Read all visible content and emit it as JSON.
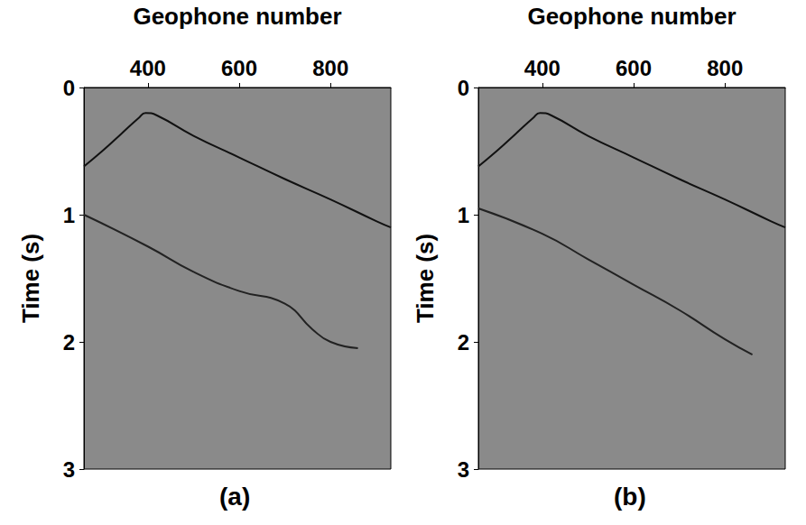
{
  "chart_data": [
    {
      "type": "line",
      "title": "(a)",
      "x_label": "Geophone number",
      "y_label": "Time (s)",
      "xlim": [
        260,
        932
      ],
      "xticks": [
        400,
        600,
        800
      ],
      "ylim": [
        0,
        3
      ],
      "yticks": [
        0,
        1,
        2,
        3
      ],
      "grid": false,
      "series": [
        {
          "color": "#111111",
          "x": [
            260,
            300,
            340,
            380,
            395,
            420,
            500,
            600,
            700,
            800,
            900,
            932
          ],
          "values": [
            0.62,
            0.5,
            0.37,
            0.24,
            0.2,
            0.22,
            0.38,
            0.55,
            0.72,
            0.88,
            1.05,
            1.1
          ]
        },
        {
          "color": "#222222",
          "x": [
            260,
            400,
            500,
            600,
            700,
            760,
            800,
            860
          ],
          "values": [
            1.0,
            1.25,
            1.45,
            1.6,
            1.7,
            1.9,
            2.0,
            2.05
          ]
        }
      ]
    },
    {
      "type": "line",
      "title": "(b)",
      "x_label": "Geophone number",
      "y_label": "Time (s)",
      "xlim": [
        260,
        932
      ],
      "xticks": [
        400,
        600,
        800
      ],
      "ylim": [
        0,
        3
      ],
      "yticks": [
        0,
        1,
        2,
        3
      ],
      "grid": false,
      "series": [
        {
          "color": "#111111",
          "x": [
            260,
            300,
            340,
            380,
            395,
            420,
            500,
            600,
            700,
            800,
            900,
            932
          ],
          "values": [
            0.62,
            0.5,
            0.37,
            0.24,
            0.2,
            0.22,
            0.38,
            0.55,
            0.72,
            0.88,
            1.05,
            1.1
          ]
        },
        {
          "color": "#222222",
          "x": [
            260,
            400,
            500,
            600,
            700,
            800,
            860
          ],
          "values": [
            0.95,
            1.15,
            1.35,
            1.55,
            1.75,
            1.98,
            2.1
          ]
        }
      ]
    }
  ]
}
